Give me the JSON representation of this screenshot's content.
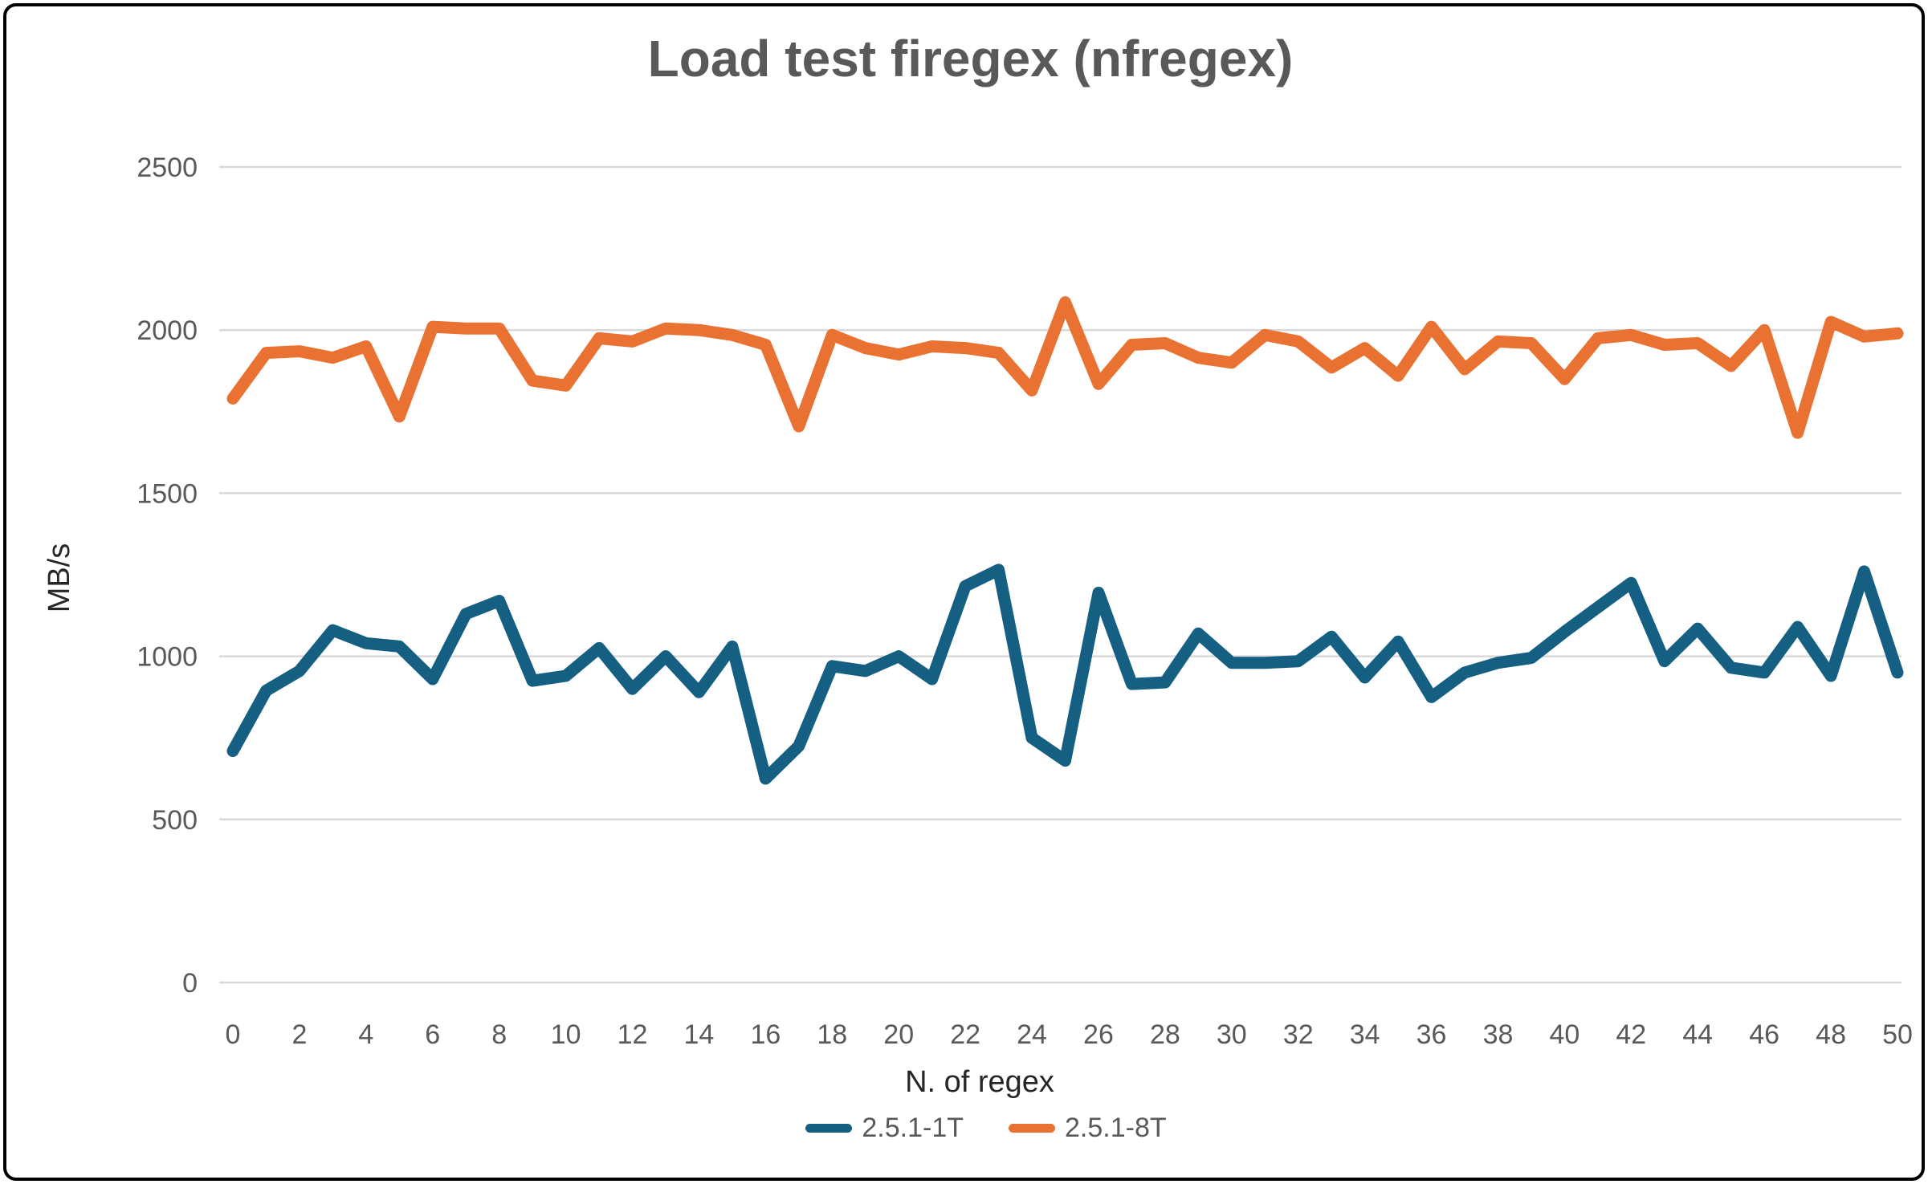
{
  "chart_data": {
    "type": "line",
    "title": "Load test firegex (nfregex)",
    "xlabel": "N. of regex",
    "ylabel": "MB/s",
    "x": [
      0,
      1,
      2,
      3,
      4,
      5,
      6,
      7,
      8,
      9,
      10,
      11,
      12,
      13,
      14,
      15,
      16,
      17,
      18,
      19,
      20,
      21,
      22,
      23,
      24,
      25,
      26,
      27,
      28,
      29,
      30,
      31,
      32,
      33,
      34,
      35,
      36,
      37,
      38,
      39,
      40,
      41,
      42,
      43,
      44,
      45,
      46,
      47,
      48,
      49,
      50
    ],
    "x_tick_labels": [
      "0",
      "2",
      "4",
      "6",
      "8",
      "10",
      "12",
      "14",
      "16",
      "18",
      "20",
      "22",
      "24",
      "26",
      "28",
      "30",
      "32",
      "34",
      "36",
      "38",
      "40",
      "42",
      "44",
      "46",
      "48",
      "50"
    ],
    "y_ticks": [
      "0",
      "500",
      "1000",
      "1500",
      "2000",
      "2500"
    ],
    "ylim": [
      0,
      2500
    ],
    "grid": "horizontal",
    "legend_position": "bottom",
    "series": [
      {
        "name": "2.5.1-1T",
        "color": "#156082",
        "values": [
          710,
          895,
          955,
          1080,
          1040,
          1030,
          930,
          1130,
          1170,
          925,
          940,
          1025,
          900,
          1000,
          890,
          1030,
          625,
          725,
          970,
          955,
          1000,
          930,
          1215,
          1265,
          750,
          680,
          1195,
          915,
          920,
          1070,
          980,
          980,
          985,
          1060,
          935,
          1045,
          875,
          950,
          980,
          995,
          1075,
          1150,
          1225,
          985,
          1085,
          965,
          950,
          1090,
          940,
          1260,
          950
        ]
      },
      {
        "name": "2.5.1-8T",
        "color": "#E97132",
        "values": [
          1790,
          1930,
          1935,
          1915,
          1950,
          1735,
          2010,
          2005,
          2005,
          1845,
          1830,
          1975,
          1965,
          2005,
          2000,
          1985,
          1955,
          1705,
          1985,
          1945,
          1925,
          1950,
          1945,
          1930,
          1815,
          2085,
          1835,
          1955,
          1960,
          1915,
          1900,
          1985,
          1965,
          1885,
          1945,
          1860,
          2010,
          1880,
          1965,
          1960,
          1850,
          1975,
          1985,
          1955,
          1960,
          1890,
          2000,
          1685,
          2025,
          1980,
          1990
        ]
      }
    ]
  },
  "style": {
    "background": "#FFFFFF",
    "border_color": "#000000",
    "gridline_color": "#D9D9D9",
    "title_color": "#595959",
    "tick_label_color": "#595959",
    "axis_title_color": "#262626"
  }
}
